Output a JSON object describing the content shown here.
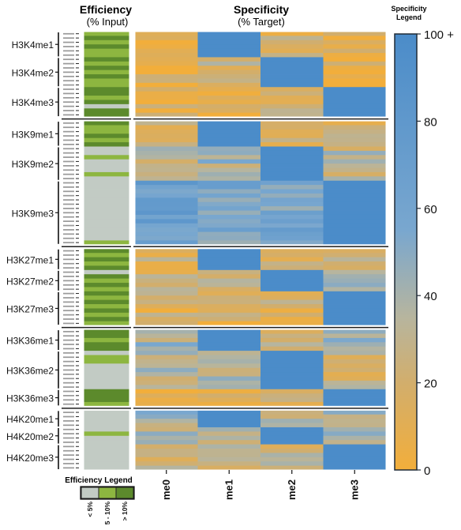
{
  "header": {
    "efficiency_title": "Efficiency",
    "efficiency_sub": "(% Input)",
    "specificity_title": "Specificity",
    "specificity_sub": "(% Target)"
  },
  "legend": {
    "spec_title_1": "Specificity",
    "spec_title_2": "Legend",
    "spec_ticks": [
      "100 +",
      "80",
      "60",
      "40",
      "20",
      "0"
    ],
    "colors": {
      "low": "#F2AE3B",
      "mid": "#B7B59E",
      "high": "#4B8CC9"
    },
    "eff_title": "Efficiency Legend",
    "eff_labels": [
      "< 5%",
      "5 - 10%",
      "> 10%"
    ],
    "eff_colors": [
      "#C2CBC4",
      "#8DB640",
      "#5C8A2C"
    ]
  },
  "chart_data": {
    "type": "heatmap",
    "title": "",
    "columns": [
      "me0",
      "me1",
      "me2",
      "me3"
    ],
    "value_range": [
      0,
      100
    ],
    "groups": [
      {
        "name": "H3K4",
        "rows": [
          {
            "label": "H3K4me1-",
            "spec": [
              12,
              100,
              18,
              15
            ],
            "eff": [
              1,
              2,
              1,
              2,
              1,
              1
            ]
          },
          {
            "label": "H3K4me2-",
            "spec": [
              8,
              22,
              100,
              6
            ],
            "eff": [
              2,
              1,
              2,
              1,
              2,
              1,
              1
            ]
          },
          {
            "label": "H3K4me3-",
            "spec": [
              10,
              10,
              25,
              100
            ],
            "eff": [
              2,
              2,
              1,
              2,
              0,
              2,
              2
            ]
          }
        ]
      },
      {
        "name": "H3K9",
        "rows": [
          {
            "label": "H3K9me1-",
            "spec": [
              15,
              100,
              20,
              15
            ],
            "eff": [
              2,
              1,
              1,
              2,
              1,
              2
            ]
          },
          {
            "label": "H3K9me2-",
            "spec": [
              35,
              40,
              100,
              30
            ],
            "eff": [
              0,
              0,
              1,
              0,
              0,
              0,
              1,
              0
            ]
          },
          {
            "label": "H3K9me3-",
            "spec": [
              70,
              60,
              60,
              100
            ],
            "eff": [
              0,
              0,
              0,
              0,
              0,
              0,
              0,
              0,
              0,
              0,
              0,
              0,
              0,
              0,
              1
            ]
          }
        ]
      },
      {
        "name": "H3K27",
        "rows": [
          {
            "label": "H3K27me1-",
            "spec": [
              20,
              100,
              25,
              20
            ],
            "eff": [
              2,
              1,
              2,
              1,
              2
            ]
          },
          {
            "label": "H3K27me2-",
            "spec": [
              20,
              20,
              100,
              35
            ],
            "eff": [
              0,
              2,
              1,
              2,
              1
            ]
          },
          {
            "label": "H3K27me3-",
            "spec": [
              15,
              15,
              15,
              100
            ],
            "eff": [
              2,
              1,
              2,
              1,
              2,
              1,
              2,
              1
            ]
          }
        ]
      },
      {
        "name": "H3K36",
        "rows": [
          {
            "label": "H3K36me1-",
            "spec": [
              40,
              100,
              30,
              40
            ],
            "eff": [
              2,
              2,
              1,
              2,
              2
            ]
          },
          {
            "label": "H3K36me2-",
            "spec": [
              35,
              40,
              100,
              25
            ],
            "eff": [
              0,
              1,
              1,
              0,
              0,
              0,
              0,
              0,
              0
            ]
          },
          {
            "label": "H3K36me3-",
            "spec": [
              12,
              12,
              12,
              100
            ],
            "eff": [
              2,
              2,
              2,
              1
            ]
          }
        ]
      },
      {
        "name": "H4K20",
        "rows": [
          {
            "label": "H4K20me1-",
            "spec": [
              40,
              100,
              35,
              35
            ],
            "eff": [
              0,
              0,
              0,
              0
            ]
          },
          {
            "label": "H4K20me2-",
            "spec": [
              35,
              35,
              100,
              35
            ],
            "eff": [
              0,
              1,
              0,
              0
            ]
          },
          {
            "label": "H4K20me3-",
            "spec": [
              25,
              30,
              25,
              100
            ],
            "eff": [
              0,
              0,
              0,
              0,
              0,
              0
            ]
          }
        ]
      }
    ]
  }
}
